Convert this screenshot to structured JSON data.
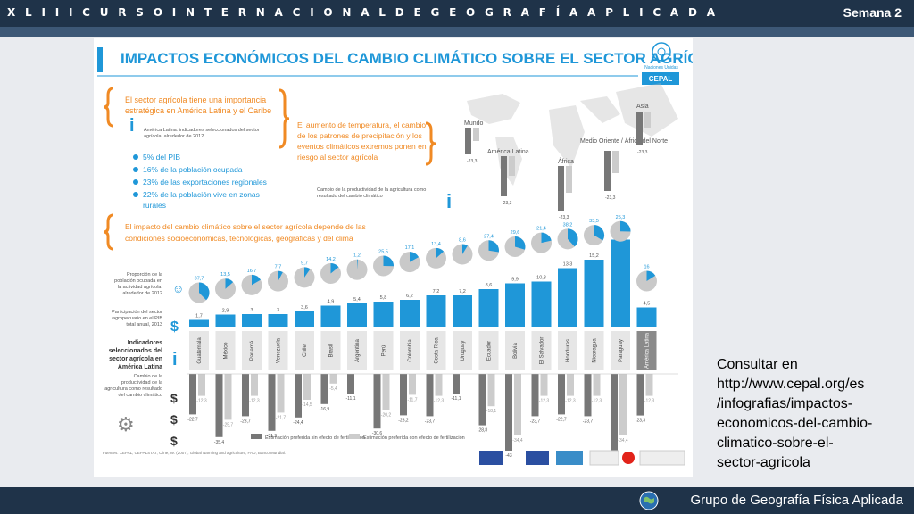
{
  "header": {
    "title": "X L I I I  C U R S O  I N T E R N A C I O N A L  D E G E O G R A F Í A  A P L I C A D A",
    "week": "Semana 2"
  },
  "footer": {
    "group": "Grupo de Geografía Física Aplicada"
  },
  "side_note": {
    "lines": [
      "Consultar en",
      "http://www.cepal.org/es",
      "/infografias/impactos-",
      "economicos-del-cambio-",
      "climatico-sobre-el-",
      "sector-agricola"
    ]
  },
  "infographic": {
    "title": "IMPACTOS ECONÓMICOS DEL CAMBIO CLIMÁTICO SOBRE EL SECTOR AGRÍCOLA",
    "logos": {
      "un": "Naciones Unidas",
      "cepal": "CEPAL"
    },
    "intro": {
      "lead": [
        "El sector agrícola tiene una importancia",
        "estratégica en América Latina y el Caribe"
      ],
      "sub": [
        "América Latina: indicadores seleccionados del sector",
        "agrícola, alrededor de 2012"
      ],
      "bullets": [
        "5% del PIB",
        "16% de la población ocupada",
        "23% de las exportaciones regionales",
        "22% de la población vive en zonas",
        "rurales"
      ]
    },
    "middle_text": [
      "El aumento de temperatura, el cambio",
      "de los patrones de precipitación y los",
      "eventos climáticos extremos ponen en",
      "riesgo al sector agrícola"
    ],
    "middle_caption": [
      "Cambio de la productividad de la agricultura como",
      "resultado del cambio climático"
    ],
    "world": {
      "regions": [
        "Mundo",
        "América Latina",
        "África",
        "Medio Oriente / África del Norte",
        "Asia"
      ],
      "values": [
        "-23,3",
        "-23,3",
        "-23,3",
        "-23,3",
        "-23,3"
      ]
    },
    "impact_text": [
      "El impacto del cambio climático sobre el sector agrícola depende de las",
      "condiciones socioeconómicas, tecnológicas, geográficas y del clima"
    ],
    "left_labels": {
      "employment": [
        "Proporción de la",
        "población ocupada en",
        "la actividad agrícola,",
        "alrededor de 2012"
      ],
      "gdp": [
        "Participación del sector",
        "agropecuario en el PIB",
        "total anual, 2013"
      ],
      "indicators": [
        "Indicadores",
        "seleccionados del",
        "sector agrícola en",
        "América Latina"
      ],
      "productivity": [
        "Cambio de la",
        "productividad de la",
        "agricultura como resultado",
        "del cambio climático"
      ]
    },
    "legend": [
      "Estimación preferida sin efecto de fertilización",
      "Estimación preferida con efecto de fertilización"
    ],
    "footnote": "Fuentes: CEPAL, CEPALSTAT; Cline, W. (2007), Global warming and agriculture; FAO; Banco Mundial.",
    "colors": {
      "blue": "#1f97d8",
      "lightblue": "#7cc3ea",
      "orange": "#f08a24",
      "grey": "#9a9a9a",
      "dark": "#555"
    }
  },
  "chart_data": {
    "type": "bar",
    "categories": [
      "Guatemala",
      "México",
      "Panamá",
      "Venezuela",
      "Chile",
      "Brasil",
      "Argentina",
      "Perú",
      "Colombia",
      "Costa Rica",
      "Uruguay",
      "Ecuador",
      "Bolivia",
      "El Salvador",
      "Honduras",
      "Nicaragua",
      "Paraguay",
      "América Latina"
    ],
    "series": [
      {
        "name": "Participación del sector agropecuario en el PIB total anual, 2013",
        "values": [
          1.7,
          2.9,
          3.0,
          3.0,
          3.6,
          4.9,
          5.4,
          5.8,
          6.2,
          7.2,
          7.2,
          8.6,
          9.9,
          10.3,
          13.3,
          15.2,
          19.7,
          4.5
        ]
      },
      {
        "name": "Proporción de la población ocupada en la actividad agrícola, alrededor de 2012",
        "values": [
          37.7,
          13.5,
          16.7,
          7.7,
          9.7,
          14.2,
          1.2,
          25.5,
          17.1,
          13.4,
          8.6,
          27.4,
          29.6,
          21.4,
          38.2,
          33.5,
          25.3,
          16
        ]
      },
      {
        "name": "Estimación preferida sin efecto de fertilización",
        "values": [
          -22.7,
          -35.4,
          -23.7,
          -31.9,
          -24.4,
          -16.9,
          -11.1,
          -30.6,
          -23.2,
          -23.7,
          -11.1,
          -28.8,
          -43,
          -23.7,
          -22.7,
          -23.7,
          -43,
          -23.3
        ]
      },
      {
        "name": "Estimación preferida con efecto de fertilización",
        "values": [
          -12.3,
          -25.7,
          -12.3,
          -21.7,
          -14.5,
          -5.4,
          0,
          -20.2,
          -11.7,
          -12.3,
          0,
          -18.1,
          -34.4,
          -12.3,
          -12.3,
          -12.3,
          -34.4,
          -12.3
        ]
      }
    ]
  }
}
